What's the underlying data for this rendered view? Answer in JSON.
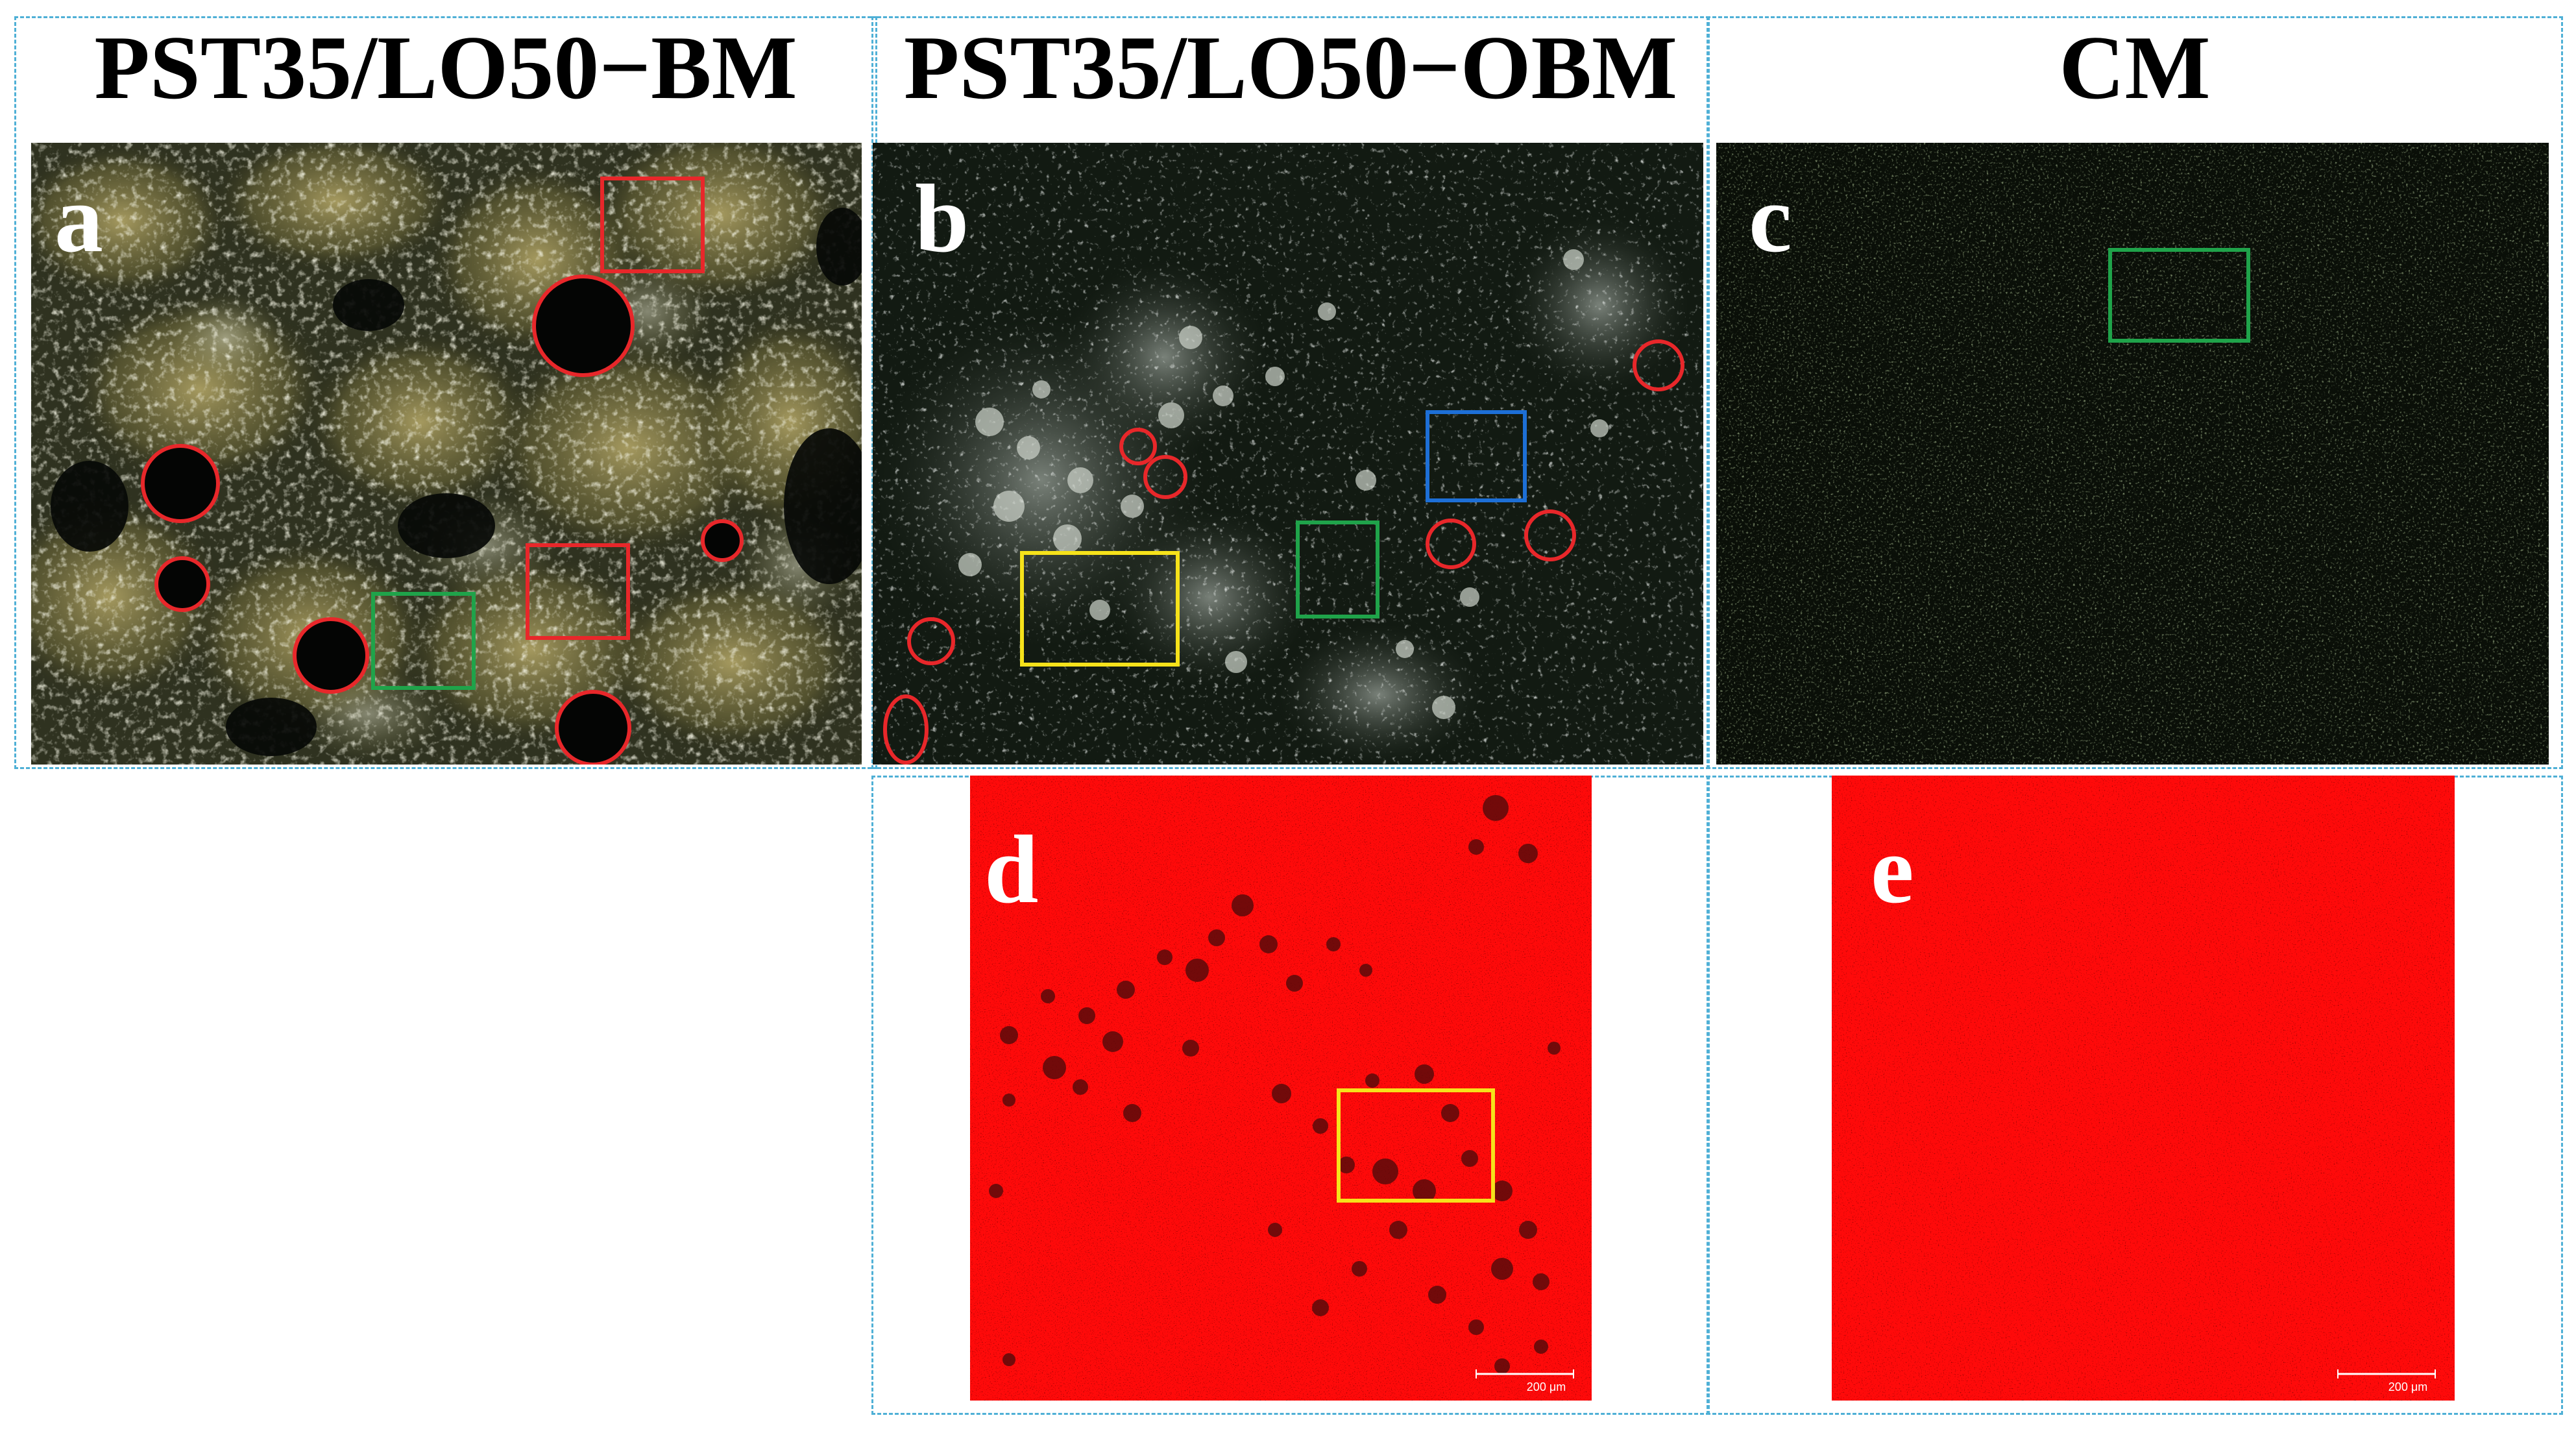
{
  "columns": {
    "bm": {
      "title": "PST35/LO50−BM"
    },
    "obm": {
      "title": "PST35/LO50−OBM"
    },
    "cm": {
      "title": "CM"
    }
  },
  "panels": {
    "a": {
      "label": "a"
    },
    "b": {
      "label": "b"
    },
    "c": {
      "label": "c"
    },
    "d": {
      "label": "d",
      "scale_bar": "200 μm"
    },
    "e": {
      "label": "e",
      "scale_bar": "200 μm"
    }
  },
  "colors": {
    "red_marker": "#e8272a",
    "green_marker": "#1fa34a",
    "blue_marker": "#1d6fd6",
    "yellow_marker": "#f6e21a",
    "frame_dash": "#4fb0d6",
    "fluorescence_red": "#ff0a0a"
  }
}
